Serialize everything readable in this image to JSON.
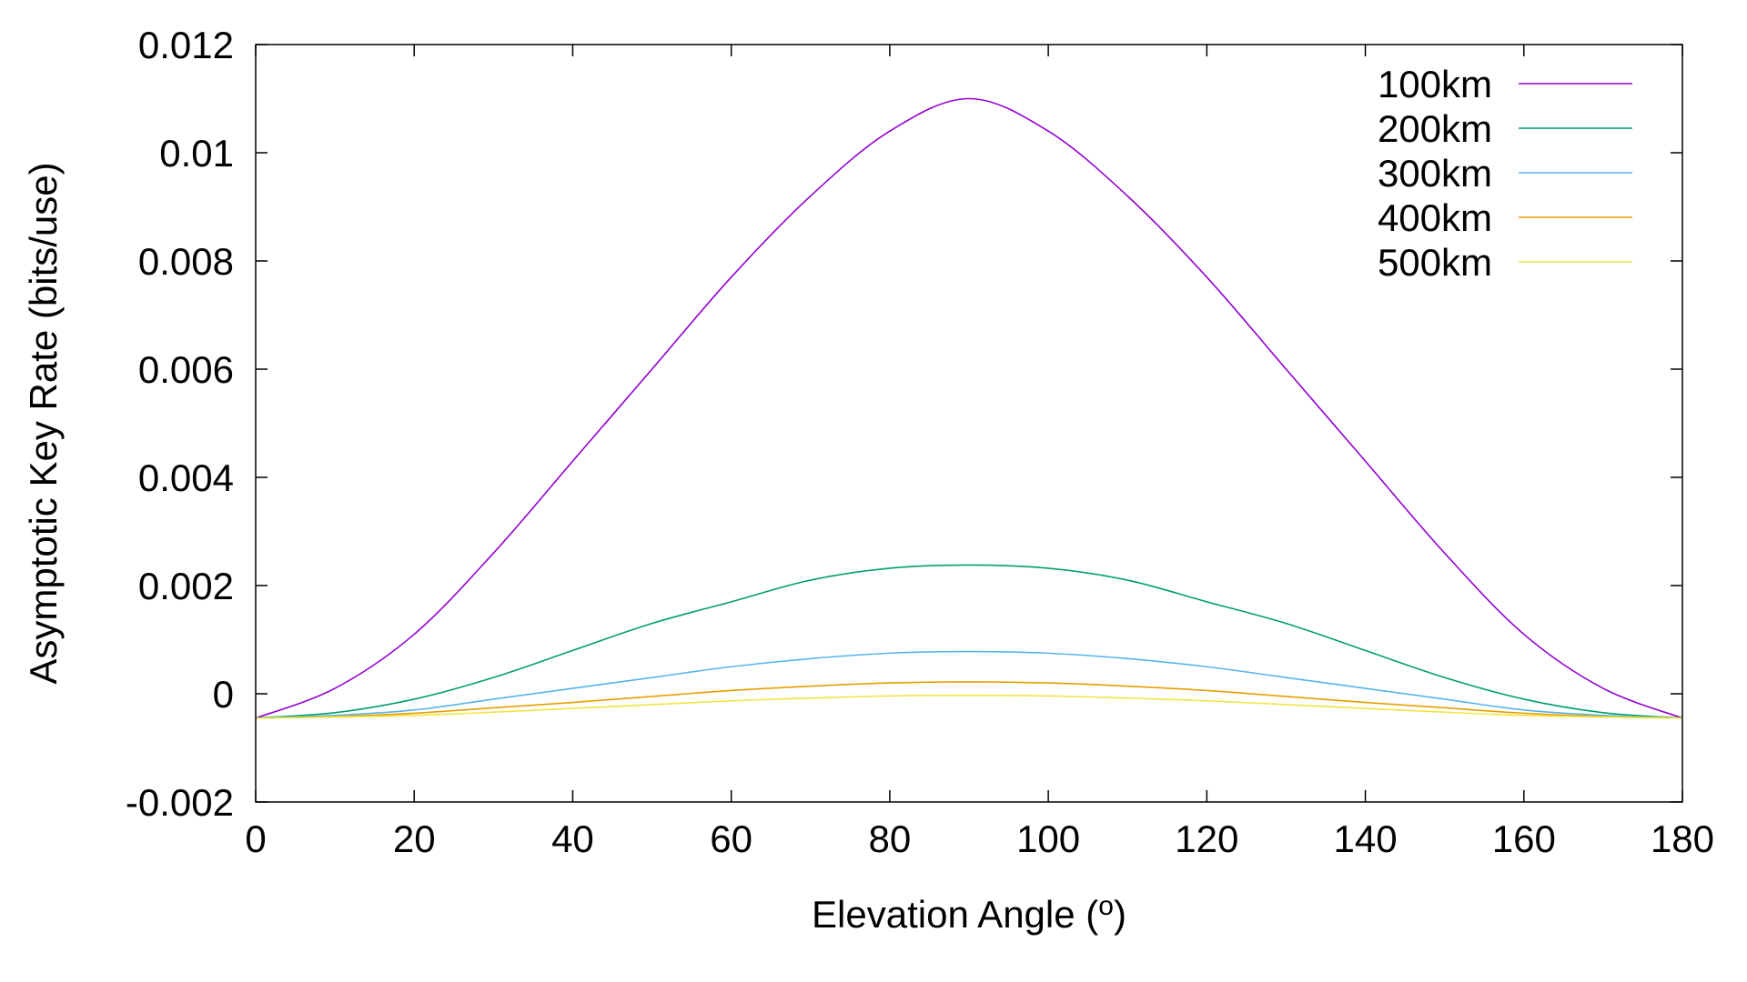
{
  "chart_data": {
    "type": "line",
    "xlabel": "Elevation Angle (",
    "xlabel_superscript": "o",
    "xlabel_suffix": ")",
    "ylabel": "Asymptotic Key Rate (bits/use)",
    "xlim": [
      0,
      180
    ],
    "ylim": [
      -0.002,
      0.012
    ],
    "xticks": [
      0,
      20,
      40,
      60,
      80,
      100,
      120,
      140,
      160,
      180
    ],
    "xtick_labels": [
      "0",
      "20",
      "40",
      "60",
      "80",
      "100",
      "120",
      "140",
      "160",
      "180"
    ],
    "yticks": [
      -0.002,
      0,
      0.002,
      0.004,
      0.006,
      0.008,
      0.01,
      0.012
    ],
    "ytick_labels": [
      "-0.002",
      "0",
      "0.002",
      "0.004",
      "0.006",
      "0.008",
      "0.01",
      "0.012"
    ],
    "grid": false,
    "legend_position": "top-right",
    "x": [
      0,
      10,
      20,
      30,
      40,
      50,
      60,
      70,
      80,
      90,
      100,
      110,
      120,
      130,
      140,
      150,
      160,
      170,
      180
    ],
    "series": [
      {
        "name": "100km",
        "color": "#9400D3",
        "values": [
          -0.00045,
          0.0001,
          0.0011,
          0.0026,
          0.0043,
          0.006,
          0.0077,
          0.0092,
          0.0104,
          0.011,
          0.0104,
          0.0092,
          0.0077,
          0.006,
          0.0043,
          0.0026,
          0.0011,
          0.0001,
          -0.00045
        ]
      },
      {
        "name": "200km",
        "color": "#009E73",
        "values": [
          -0.00045,
          -0.00035,
          -0.0001,
          0.0003,
          0.0008,
          0.0013,
          0.0017,
          0.0021,
          0.00232,
          0.00238,
          0.00232,
          0.0021,
          0.0017,
          0.0013,
          0.0008,
          0.0003,
          -0.0001,
          -0.00035,
          -0.00045
        ]
      },
      {
        "name": "300km",
        "color": "#56B4E9",
        "values": [
          -0.00045,
          -0.0004,
          -0.0003,
          -0.0001,
          0.0001,
          0.0003,
          0.0005,
          0.00065,
          0.00075,
          0.00078,
          0.00075,
          0.00065,
          0.0005,
          0.0003,
          0.0001,
          -0.0001,
          -0.0003,
          -0.0004,
          -0.00045
        ]
      },
      {
        "name": "400km",
        "color": "#E69F00",
        "values": [
          -0.00045,
          -0.00042,
          -0.00036,
          -0.00026,
          -0.00016,
          -5e-05,
          6e-05,
          0.00014,
          0.0002,
          0.00022,
          0.0002,
          0.00014,
          6e-05,
          -5e-05,
          -0.00016,
          -0.00026,
          -0.00036,
          -0.00042,
          -0.00045
        ]
      },
      {
        "name": "500km",
        "color": "#F0E442",
        "values": [
          -0.00045,
          -0.00043,
          -0.0004,
          -0.00034,
          -0.00027,
          -0.0002,
          -0.00013,
          -8e-05,
          -4e-05,
          -3e-05,
          -4e-05,
          -8e-05,
          -0.00013,
          -0.0002,
          -0.00027,
          -0.00034,
          -0.0004,
          -0.00043,
          -0.00045
        ]
      }
    ]
  }
}
